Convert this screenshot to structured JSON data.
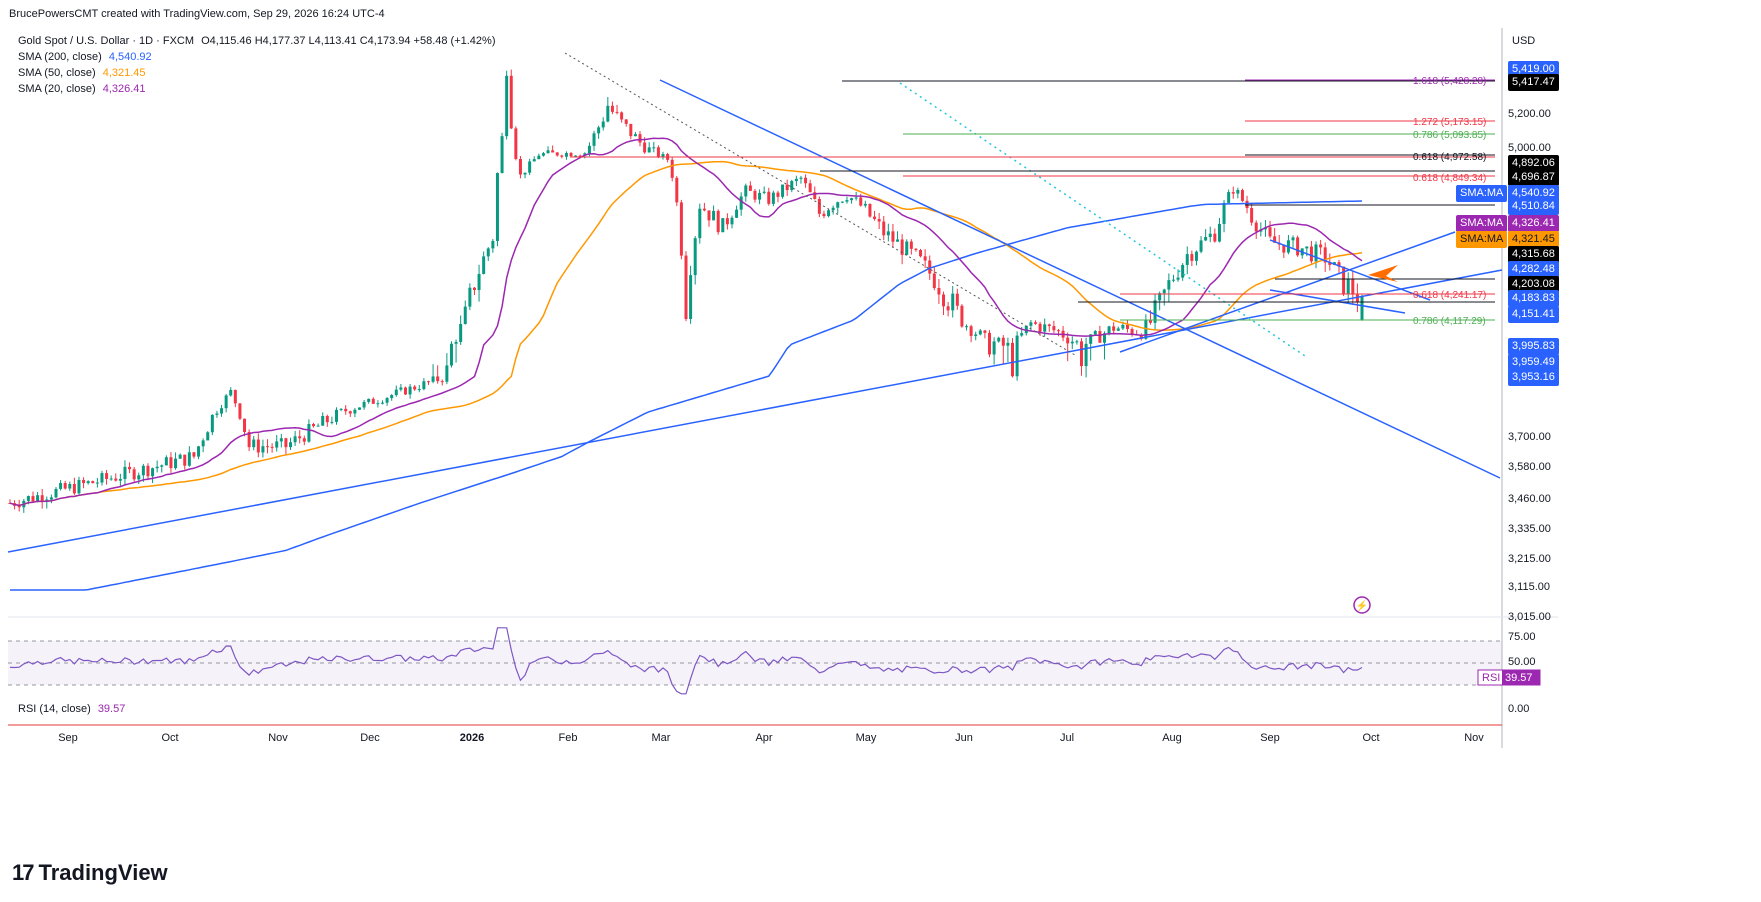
{
  "header": {
    "text": "BrucePowersCMT created with TradingView.com, Sep 29, 2026 16:24 UTC-4"
  },
  "legend": {
    "symbol": "Gold Spot / U.S. Dollar · 1D · FXCM",
    "ohlc": "O4,115.46  H4,177.37  L4,113.41  C4,173.94  +58.48 (+1.42%)",
    "sma200_label": "SMA (200, close)",
    "sma200_value": "4,540.92",
    "sma50_label": "SMA (50, close)",
    "sma50_value": "4,321.45",
    "sma20_label": "SMA (20, close)",
    "sma20_value": "4,326.41"
  },
  "rsi_legend": {
    "label": "RSI (14, close)",
    "value": "39.57"
  },
  "brand": {
    "logo": "17",
    "name": "TradingView"
  },
  "colors": {
    "up": "#089981",
    "down": "#f23645",
    "sma200": "#2962ff",
    "sma50": "#ff9800",
    "sma20": "#9c27b0",
    "trend": "#2962ff",
    "fib_red": "#f23645",
    "fib_green": "#4caf50",
    "rsi": "#7e57c2"
  },
  "chart_data": {
    "type": "candlestick",
    "currency": "USD",
    "x_ticks": [
      "Sep",
      "Oct",
      "Nov",
      "Dec",
      "2026",
      "Feb",
      "Mar",
      "Apr",
      "May",
      "Jun",
      "Jul",
      "Aug",
      "Sep",
      "Oct",
      "Nov"
    ],
    "y_ticks": [
      "5,200.00",
      "5,000.00",
      "3,700.00",
      "3,580.00",
      "3,460.00",
      "3,335.00",
      "3,215.00",
      "3,115.00",
      "3,015.00"
    ],
    "price_tags": [
      {
        "text": "5,419.00",
        "bg": "#2962ff",
        "fg": "#ffffff"
      },
      {
        "text": "5,417.47",
        "bg": "#000000",
        "fg": "#ffffff"
      },
      {
        "text": "4,892.06",
        "bg": "#000000",
        "fg": "#ffffff"
      },
      {
        "text": "4,696.87",
        "bg": "#000000",
        "fg": "#ffffff"
      },
      {
        "text": "SMA:MA",
        "bg": "#2962ff",
        "fg": "#ffffff"
      },
      {
        "text": "4,540.92",
        "bg": "#2962ff",
        "fg": "#ffffff"
      },
      {
        "text": "4,510.84",
        "bg": "#2962ff",
        "fg": "#ffffff"
      },
      {
        "text": "SMA:MA",
        "bg": "#9c27b0",
        "fg": "#ffffff"
      },
      {
        "text": "4,326.41",
        "bg": "#9c27b0",
        "fg": "#ffffff"
      },
      {
        "text": "SMA:MA",
        "bg": "#ff9800",
        "fg": "#131722"
      },
      {
        "text": "4,321.45",
        "bg": "#ff9800",
        "fg": "#131722"
      },
      {
        "text": "4,315.68",
        "bg": "#000000",
        "fg": "#ffffff"
      },
      {
        "text": "4,282.48",
        "bg": "#2962ff",
        "fg": "#ffffff"
      },
      {
        "text": "4,203.08",
        "bg": "#000000",
        "fg": "#ffffff"
      },
      {
        "text": "4,183.83",
        "bg": "#2962ff",
        "fg": "#ffffff"
      },
      {
        "text": "4,151.41",
        "bg": "#2962ff",
        "fg": "#ffffff"
      },
      {
        "text": "3,995.83",
        "bg": "#2962ff",
        "fg": "#ffffff"
      },
      {
        "text": "3,959.49",
        "bg": "#2962ff",
        "fg": "#ffffff"
      },
      {
        "text": "3,953.16",
        "bg": "#2962ff",
        "fg": "#ffffff"
      }
    ],
    "fib_labels": [
      {
        "text": "1.618 (5,428.28)",
        "color": "#9c27b0"
      },
      {
        "text": "1.272 (5,173.15)",
        "color": "#f23645"
      },
      {
        "text": "0.786 (5,093.85)",
        "color": "#4caf50"
      },
      {
        "text": "0.618 (4,972.58)",
        "color": "#131722"
      },
      {
        "text": "0.618 (4,849.34)",
        "color": "#f23645"
      },
      {
        "text": "0.618 (4,241.17)",
        "color": "#f23645"
      },
      {
        "text": "0.786 (4,117.29)",
        "color": "#4caf50"
      }
    ],
    "rsi_ticks": [
      "75.00",
      "50.00",
      "0.00"
    ],
    "rsi_tag": {
      "label": "RSI",
      "value": "39.57"
    },
    "ohlc_last": {
      "open": 4115.46,
      "high": 4177.37,
      "low": 4113.41,
      "close": 4173.94
    }
  }
}
